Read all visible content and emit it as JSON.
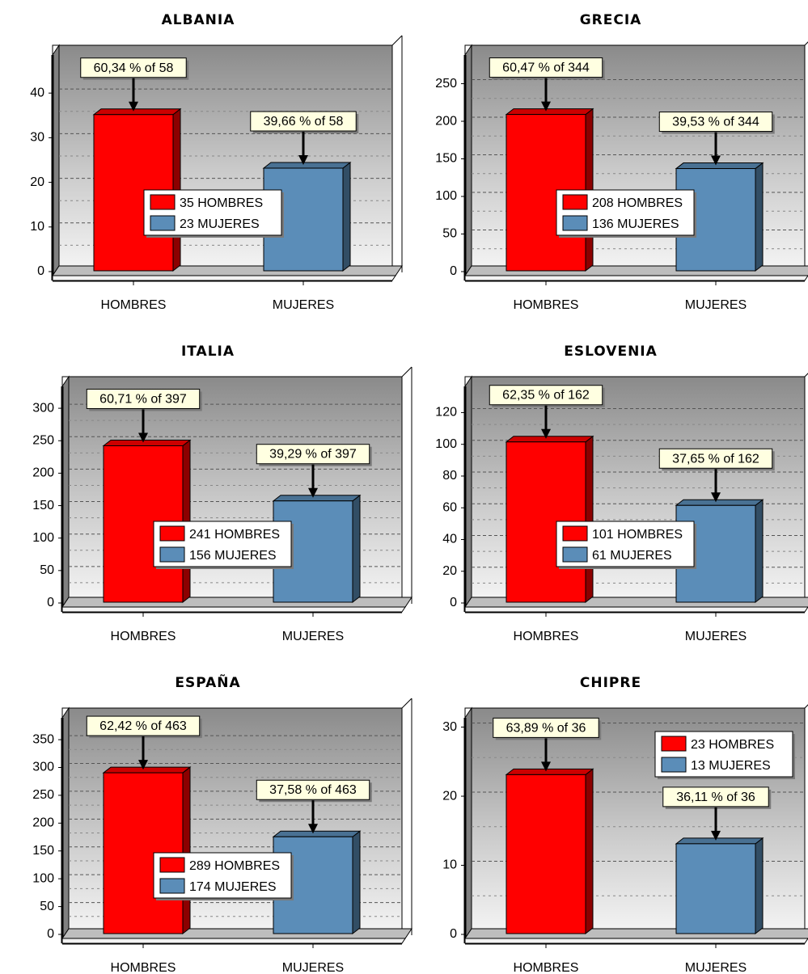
{
  "chart_data": [
    {
      "type": "bar",
      "title": "ALBANIA",
      "categories": [
        "HOMBRES",
        "MUJERES"
      ],
      "values": [
        35,
        23
      ],
      "colors": [
        "#ff0000",
        "#5b8db8"
      ],
      "annotations": [
        "60,34 % of 58",
        "39,66 % of 58"
      ],
      "legend": [
        "35 HOMBRES",
        "23 MUJERES"
      ],
      "legend_position": "center",
      "ylim": [
        0,
        48
      ],
      "yticks": [
        0,
        10,
        20,
        30,
        40
      ],
      "grid": true
    },
    {
      "type": "bar",
      "title": "GRECIA",
      "categories": [
        "HOMBRES",
        "MUJERES"
      ],
      "values": [
        208,
        136
      ],
      "colors": [
        "#ff0000",
        "#5b8db8"
      ],
      "annotations": [
        "60,47 % of 344",
        "39,53 % of 344"
      ],
      "legend": [
        "208 HOMBRES",
        "136 MUJERES"
      ],
      "legend_position": "center",
      "ylim": [
        0,
        285
      ],
      "yticks": [
        0,
        50,
        100,
        150,
        200,
        250
      ],
      "grid": true
    },
    {
      "type": "bar",
      "title": "ITALIA",
      "categories": [
        "HOMBRES",
        "MUJERES"
      ],
      "values": [
        241,
        156
      ],
      "colors": [
        "#ff0000",
        "#5b8db8"
      ],
      "annotations": [
        "60,71 % of 397",
        "39,29 % of 397"
      ],
      "legend": [
        "241 HOMBRES",
        "156 MUJERES"
      ],
      "legend_position": "center",
      "ylim": [
        0,
        330
      ],
      "yticks": [
        0,
        50,
        100,
        150,
        200,
        250,
        300
      ],
      "grid": true
    },
    {
      "type": "bar",
      "title": "ESLOVENIA",
      "categories": [
        "HOMBRES",
        "MUJERES"
      ],
      "values": [
        101,
        61
      ],
      "colors": [
        "#ff0000",
        "#5b8db8"
      ],
      "annotations": [
        "62,35 % of 162",
        "37,65 % of 162"
      ],
      "legend": [
        "101 HOMBRES",
        "  61 MUJERES"
      ],
      "legend_position": "center",
      "ylim": [
        0,
        135
      ],
      "yticks": [
        0,
        20,
        40,
        60,
        80,
        100,
        120
      ],
      "grid": true
    },
    {
      "type": "bar",
      "title": "ESPAÑA",
      "categories": [
        "HOMBRES",
        "MUJERES"
      ],
      "values": [
        289,
        174
      ],
      "colors": [
        "#ff0000",
        "#5b8db8"
      ],
      "annotations": [
        "62,42 % of 463",
        "37,58 % of 463"
      ],
      "legend": [
        "289 HOMBRES",
        "174 MUJERES"
      ],
      "legend_position": "center",
      "ylim": [
        0,
        385
      ],
      "yticks": [
        0,
        50,
        100,
        150,
        200,
        250,
        300,
        350
      ],
      "grid": true
    },
    {
      "type": "bar",
      "title": "CHIPRE",
      "categories": [
        "HOMBRES",
        "MUJERES"
      ],
      "values": [
        23,
        13
      ],
      "colors": [
        "#ff0000",
        "#5b8db8"
      ],
      "annotations": [
        "63,89 % of 36",
        "36,11 % of 36"
      ],
      "legend": [
        "23 HOMBRES",
        "13 MUJERES"
      ],
      "legend_position": "top-right",
      "ylim": [
        0,
        31
      ],
      "yticks": [
        0,
        10,
        20,
        30
      ],
      "grid": true
    }
  ]
}
